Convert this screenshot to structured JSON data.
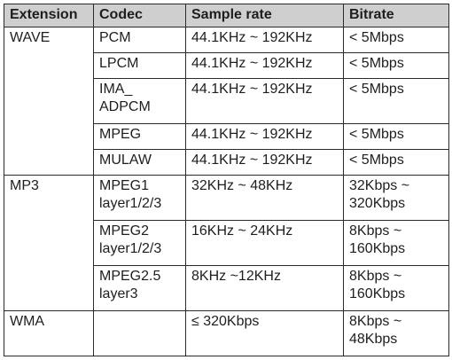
{
  "table": {
    "headers": [
      "Extension",
      "Codec",
      "Sample rate",
      "Bitrate"
    ],
    "groups": [
      {
        "extension": "WAVE",
        "rows": [
          {
            "codec": [
              "PCM"
            ],
            "sample_rate": [
              "44.1KHz ~ 192KHz"
            ],
            "bitrate": [
              "< 5Mbps"
            ]
          },
          {
            "codec": [
              "LPCM"
            ],
            "sample_rate": [
              "44.1KHz ~ 192KHz"
            ],
            "bitrate": [
              "< 5Mbps"
            ]
          },
          {
            "codec": [
              "IMA_",
              "ADPCM"
            ],
            "sample_rate": [
              "44.1KHz ~ 192KHz"
            ],
            "bitrate": [
              "< 5Mbps"
            ]
          },
          {
            "codec": [
              "MPEG"
            ],
            "sample_rate": [
              "44.1KHz ~ 192KHz"
            ],
            "bitrate": [
              "< 5Mbps"
            ]
          },
          {
            "codec": [
              "MULAW"
            ],
            "sample_rate": [
              "44.1KHz ~ 192KHz"
            ],
            "bitrate": [
              "< 5Mbps"
            ]
          }
        ]
      },
      {
        "extension": "MP3",
        "rows": [
          {
            "codec": [
              "MPEG1",
              "layer1/2/3"
            ],
            "sample_rate": [
              "32KHz ~ 48KHz"
            ],
            "bitrate": [
              "32Kbps ~",
              "320Kbps"
            ]
          },
          {
            "codec": [
              "MPEG2",
              "layer1/2/3"
            ],
            "sample_rate": [
              "16KHz ~ 24KHz"
            ],
            "bitrate": [
              "8Kbps ~",
              "160Kbps"
            ]
          },
          {
            "codec": [
              "MPEG2.5",
              "layer3"
            ],
            "sample_rate": [
              "8KHz ~12KHz"
            ],
            "bitrate": [
              "8Kbps ~",
              "160Kbps"
            ]
          }
        ]
      },
      {
        "extension": "WMA",
        "rows": [
          {
            "codec": [],
            "sample_rate": [
              "≤ 320Kbps"
            ],
            "bitrate": [
              "8Kbps ~",
              "48Kbps"
            ]
          }
        ]
      }
    ]
  }
}
